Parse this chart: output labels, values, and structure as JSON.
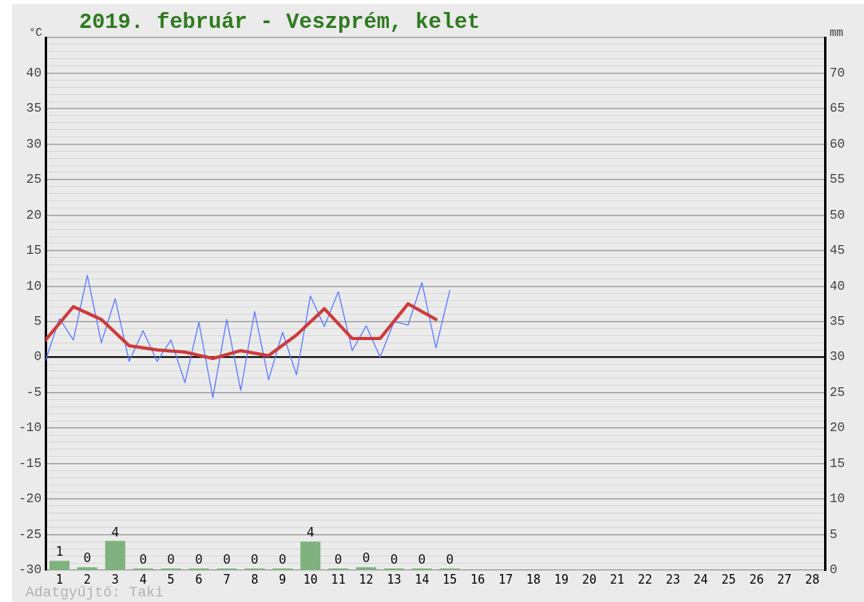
{
  "chart_data": {
    "type": "bar",
    "title": "2019. február - Veszprém, kelet",
    "ylabel": "°C",
    "y2label": "mm",
    "xlim": [
      0.5,
      28.45
    ],
    "xticks": [
      1,
      2,
      3,
      4,
      5,
      6,
      7,
      8,
      9,
      10,
      11,
      12,
      13,
      14,
      15,
      16,
      17,
      18,
      19,
      20,
      21,
      22,
      23,
      24,
      25,
      26,
      27,
      28
    ],
    "ylim": [
      -30,
      45
    ],
    "yticks": [
      -30,
      {
        "value": -29,
        "label": null
      },
      {
        "value": -28,
        "label": null
      },
      {
        "value": -27,
        "label": null
      },
      {
        "value": -26,
        "label": null
      },
      -25,
      {
        "value": -24,
        "label": null
      },
      {
        "value": -23,
        "label": null
      },
      {
        "value": -22,
        "label": null
      },
      {
        "value": -21,
        "label": null
      },
      -20,
      {
        "value": -19,
        "label": null
      },
      {
        "value": -18,
        "label": null
      },
      {
        "value": -17,
        "label": null
      },
      {
        "value": -16,
        "label": null
      },
      -15,
      {
        "value": -14,
        "label": null
      },
      {
        "value": -13,
        "label": null
      },
      {
        "value": -12,
        "label": null
      },
      {
        "value": -11,
        "label": null
      },
      -10,
      {
        "value": -9,
        "label": null
      },
      {
        "value": -8,
        "label": null
      },
      {
        "value": -7,
        "label": null
      },
      {
        "value": -6,
        "label": null
      },
      -5,
      {
        "value": -4,
        "label": null
      },
      {
        "value": -3,
        "label": null
      },
      {
        "value": -2,
        "label": null
      },
      {
        "value": -1,
        "label": null
      },
      0,
      {
        "value": 1,
        "label": null
      },
      {
        "value": 2,
        "label": null
      },
      {
        "value": 3,
        "label": null
      },
      {
        "value": 4,
        "label": null
      },
      5,
      {
        "value": 6,
        "label": null
      },
      {
        "value": 7,
        "label": null
      },
      {
        "value": 8,
        "label": null
      },
      {
        "value": 9,
        "label": null
      },
      10,
      {
        "value": 11,
        "label": null
      },
      {
        "value": 12,
        "label": null
      },
      {
        "value": 13,
        "label": null
      },
      {
        "value": 14,
        "label": null
      },
      15,
      {
        "value": 16,
        "label": null
      },
      {
        "value": 17,
        "label": null
      },
      {
        "value": 18,
        "label": null
      },
      {
        "value": 19,
        "label": null
      },
      20,
      {
        "value": 21,
        "label": null
      },
      {
        "value": 22,
        "label": null
      },
      {
        "value": 23,
        "label": null
      },
      {
        "value": 24,
        "label": null
      },
      25,
      {
        "value": 26,
        "label": null
      },
      {
        "value": 27,
        "label": null
      },
      {
        "value": 28,
        "label": null
      },
      {
        "value": 29,
        "label": null
      },
      30,
      {
        "value": 31,
        "label": null
      },
      {
        "value": 32,
        "label": null
      },
      {
        "value": 33,
        "label": null
      },
      {
        "value": 34,
        "label": null
      },
      35,
      {
        "value": 36,
        "label": null
      },
      {
        "value": 37,
        "label": null
      },
      {
        "value": 38,
        "label": null
      },
      {
        "value": 39,
        "label": null
      },
      40,
      {
        "value": 41,
        "label": null
      },
      {
        "value": 42,
        "label": null
      },
      {
        "value": 43,
        "label": null
      },
      {
        "value": 44,
        "label": null
      },
      {
        "value": 45,
        "label": null
      }
    ],
    "y2lim": [
      0,
      75
    ],
    "y2ticks": [
      0,
      5,
      10,
      15,
      20,
      25,
      30,
      35,
      40,
      45,
      50,
      55,
      60,
      65,
      70
    ],
    "grid": "y",
    "marker": "none",
    "ref_lines": [
      {
        "axis": "y",
        "value": 0,
        "color": "#000000"
      }
    ],
    "series": [
      {
        "axis": "y2",
        "color": "#7fb27f",
        "x": [
          1,
          2,
          3,
          4,
          5,
          6,
          7,
          8,
          9,
          10,
          11,
          12,
          13,
          14,
          15
        ],
        "values": [
          1.3,
          0.4,
          4.1,
          0,
          0,
          0,
          0,
          0,
          0,
          4,
          0,
          0.4,
          0,
          0,
          0
        ],
        "value_labels": [
          "1",
          "0",
          "4",
          "0",
          "0",
          "0",
          "0",
          "0",
          "0",
          "4",
          "0",
          "0",
          "0",
          "0",
          "0"
        ]
      },
      {
        "type": "line",
        "color": "#5c7cff",
        "x": [
          0.5,
          1,
          1.5,
          2,
          2.5,
          3,
          3.5,
          4,
          4.5,
          5,
          5.5,
          6,
          6.5,
          7,
          7.5,
          8,
          8.5,
          9,
          9.5,
          10,
          10.5,
          11,
          11.5,
          12,
          12.5,
          13,
          13.5,
          14,
          14.5,
          15
        ],
        "values": [
          -0.5,
          5.4,
          2.4,
          11.5,
          2.0,
          8.2,
          -0.6,
          3.7,
          -0.6,
          2.4,
          -3.6,
          4.9,
          -5.7,
          5.3,
          -4.7,
          6.4,
          -3.2,
          3.5,
          -2.5,
          8.6,
          4.3,
          9.2,
          0.9,
          4.4,
          0.0,
          5.0,
          4.5,
          10.5,
          1.3,
          9.4
        ]
      },
      {
        "type": "line",
        "color": "#cc3b3b",
        "x": [
          0.5,
          1.5,
          2.5,
          3.5,
          4.5,
          5.5,
          6.5,
          7.5,
          8.5,
          9.5,
          10.5,
          11.5,
          12.5,
          13.5,
          14.5
        ],
        "values": [
          2.4,
          7.1,
          5.3,
          1.6,
          1.0,
          0.7,
          -0.2,
          0.9,
          0.2,
          3.1,
          6.8,
          2.6,
          2.6,
          7.5,
          5.3
        ]
      }
    ],
    "annotations": [
      "Adatgyűjtő: Taki"
    ]
  }
}
